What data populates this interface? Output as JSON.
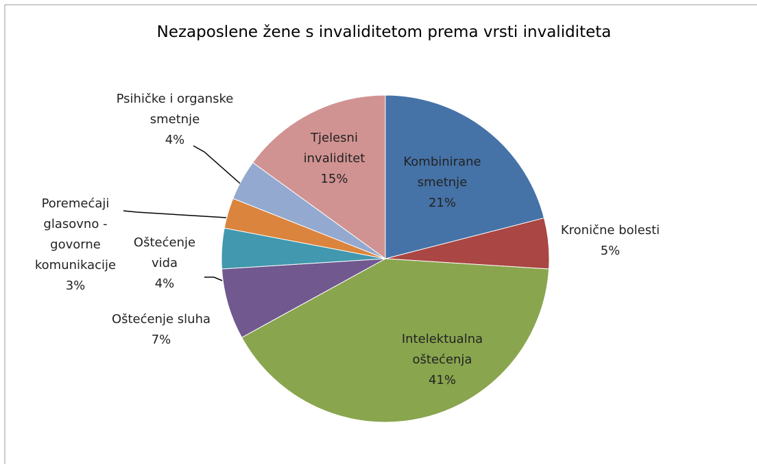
{
  "chart_data": {
    "type": "pie",
    "title": "Nezaposlene žene s invaliditetom prema vrsti invaliditeta",
    "categories": [
      "Kombinirane smetnje",
      "Kronične bolesti",
      "Intelektualna oštećenja",
      "Oštećenje sluha",
      "Oštećenje vida",
      "Poremećaji glasovno - govorne komunikacije",
      "Psihičke i organske smetnje",
      "Tjelesni invaliditet"
    ],
    "values": [
      21,
      5,
      41,
      7,
      4,
      3,
      4,
      15
    ],
    "value_labels": [
      "21%",
      "5%",
      "41%",
      "7%",
      "4%",
      "3%",
      "4%",
      "15%"
    ],
    "colors": [
      "#4572A7",
      "#AA4643",
      "#89A54E",
      "#71588F",
      "#4198AF",
      "#DB843D",
      "#93A9CF",
      "#D19392"
    ]
  }
}
